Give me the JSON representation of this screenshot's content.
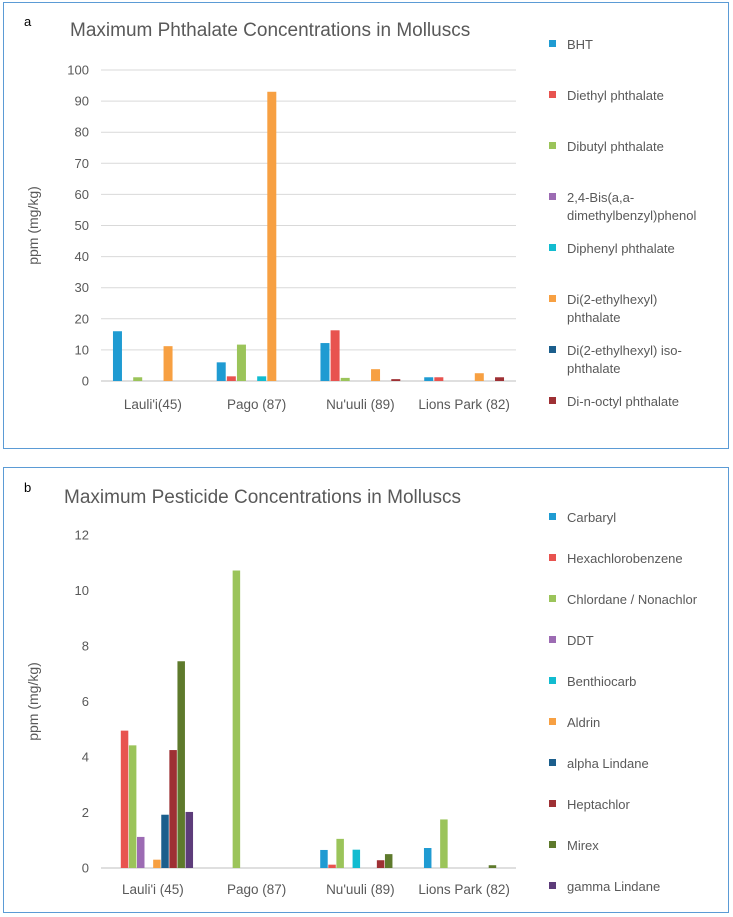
{
  "chart_data": [
    {
      "panel": "a",
      "type": "bar",
      "title": "Maximum Phthalate Concentrations in Molluscs",
      "ylabel": "ppm (mg/kg)",
      "xlabel": "",
      "ylim": [
        0,
        100
      ],
      "yticks": [
        0,
        10,
        20,
        30,
        40,
        50,
        60,
        70,
        80,
        90,
        100
      ],
      "categories": [
        "Lauli'i(45)",
        "Pago (87)",
        "Nu'uuli (89)",
        "Lions Park (82)"
      ],
      "series": [
        {
          "name": "BHT",
          "color": "#1f9bd2",
          "values": [
            16,
            6,
            12.2,
            1.2
          ]
        },
        {
          "name": "Diethyl phthalate",
          "color": "#e8534f",
          "values": [
            0,
            1.5,
            16.3,
            1.2
          ]
        },
        {
          "name": "Dibutyl phthalate",
          "color": "#9bc45a",
          "values": [
            1.2,
            11.7,
            1.0,
            0
          ]
        },
        {
          "name": "2,4-Bis(a,a-dimethylbenzyl)phenol",
          "color": "#9c6bb3",
          "values": [
            0,
            0,
            0,
            0
          ]
        },
        {
          "name": "Diphenyl phthalate",
          "color": "#12bcd0",
          "values": [
            0,
            1.5,
            0,
            0
          ]
        },
        {
          "name": "Di(2-ethylhexyl) phthalate",
          "color": "#f7a042",
          "values": [
            11.2,
            93,
            3.8,
            2.5
          ]
        },
        {
          "name": "Di(2-ethylhexyl) iso-phthalate",
          "color": "#1b5e8c",
          "values": [
            0,
            0,
            0,
            0
          ]
        },
        {
          "name": "Di-n-octyl phthalate",
          "color": "#9e3034",
          "values": [
            0,
            0,
            0.6,
            1.2
          ]
        }
      ],
      "legend_lines": [
        [
          "BHT"
        ],
        [
          "Diethyl phthalate"
        ],
        [
          "Dibutyl phthalate"
        ],
        [
          "2,4-Bis(a,a-",
          "dimethylbenzyl)phenol"
        ],
        [
          "Diphenyl phthalate"
        ],
        [
          "Di(2-ethylhexyl)",
          "phthalate"
        ],
        [
          "Di(2-ethylhexyl) iso-",
          "phthalate"
        ],
        [
          "Di-n-octyl phthalate"
        ]
      ],
      "legend_position": "right",
      "grid": true
    },
    {
      "panel": "b",
      "type": "bar",
      "title": "Maximum Pesticide Concentrations in Molluscs",
      "ylabel": "ppm (mg/kg)",
      "xlabel": "",
      "ylim": [
        0,
        12
      ],
      "yticks": [
        0,
        2,
        4,
        6,
        8,
        10,
        12
      ],
      "categories": [
        "Lauli'i (45)",
        "Pago (87)",
        "Nu'uuli (89)",
        "Lions Park (82)"
      ],
      "series": [
        {
          "name": "Carbaryl",
          "color": "#1f9bd2",
          "values": [
            0,
            0,
            0.65,
            0.72
          ]
        },
        {
          "name": "Hexachlorobenzene",
          "color": "#e8534f",
          "values": [
            4.95,
            0,
            0.12,
            0
          ]
        },
        {
          "name": "Chlordane / Nonachlor",
          "color": "#9bc45a",
          "values": [
            4.42,
            10.72,
            1.05,
            1.75
          ]
        },
        {
          "name": "DDT",
          "color": "#9c6bb3",
          "values": [
            1.12,
            0,
            0,
            0
          ]
        },
        {
          "name": "Benthiocarb",
          "color": "#12bcd0",
          "values": [
            0,
            0,
            0.66,
            0
          ]
        },
        {
          "name": "Aldrin",
          "color": "#f7a042",
          "values": [
            0.3,
            0,
            0,
            0
          ]
        },
        {
          "name": "alpha Lindane",
          "color": "#1b5e8c",
          "values": [
            1.92,
            0,
            0,
            0
          ]
        },
        {
          "name": "Heptachlor",
          "color": "#9e3034",
          "values": [
            4.25,
            0,
            0.28,
            0
          ]
        },
        {
          "name": "Mirex",
          "color": "#5e7a2c",
          "values": [
            7.45,
            0,
            0.5,
            0.1
          ]
        },
        {
          "name": "gamma Lindane",
          "color": "#5d3c7a",
          "values": [
            2.02,
            0,
            0,
            0
          ]
        }
      ],
      "legend_lines": [
        [
          "Carbaryl"
        ],
        [
          "Hexachlorobenzene"
        ],
        [
          "Chlordane / Nonachlor"
        ],
        [
          "DDT"
        ],
        [
          "Benthiocarb"
        ],
        [
          "Aldrin"
        ],
        [
          "alpha Lindane"
        ],
        [
          "Heptachlor"
        ],
        [
          "Mirex"
        ],
        [
          "gamma Lindane"
        ]
      ],
      "legend_position": "right",
      "grid": false
    }
  ],
  "panel_labels": {
    "a": "a",
    "b": "b"
  }
}
